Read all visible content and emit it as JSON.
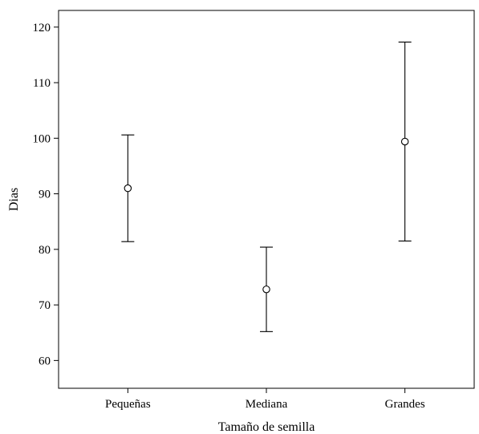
{
  "chart_data": {
    "type": "errorbar",
    "title": "",
    "xlabel": "Tamaño de semilla",
    "ylabel": "Dias",
    "ylim": [
      55,
      123
    ],
    "yticks": [
      60,
      70,
      80,
      90,
      100,
      110,
      120
    ],
    "categories": [
      "Pequeñas",
      "Mediana",
      "Grandes"
    ],
    "series": [
      {
        "mean": [
          91.0,
          72.8,
          99.4
        ],
        "lower": [
          81.4,
          65.2,
          81.5
        ],
        "upper": [
          100.6,
          80.4,
          117.3
        ]
      }
    ],
    "grid": false,
    "legend": "none"
  }
}
